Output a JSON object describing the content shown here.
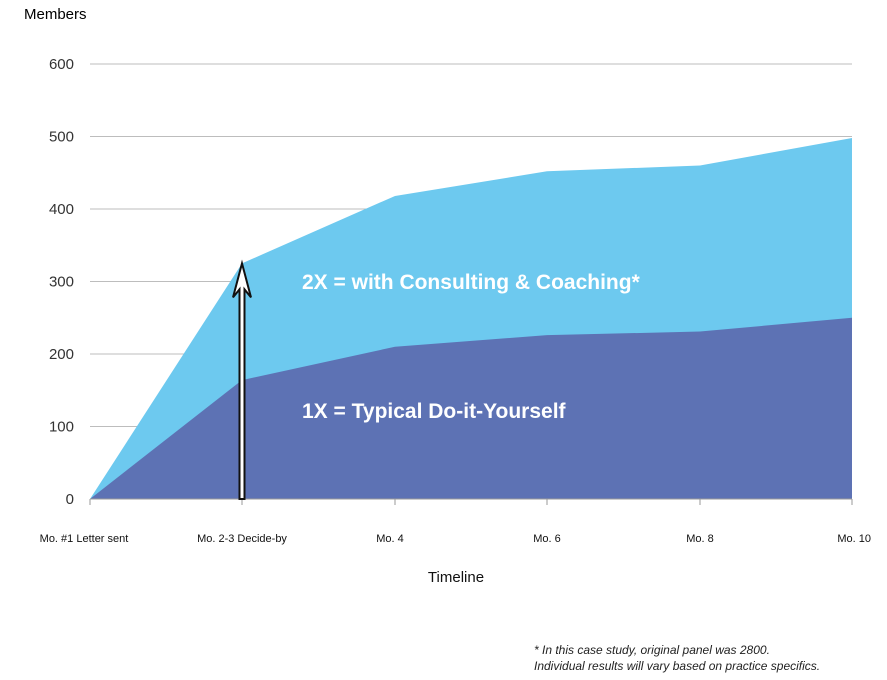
{
  "chart_data": {
    "type": "area",
    "ylabel": "Members",
    "xlabel": "Timeline",
    "categories": [
      "Mo. #1 Letter sent",
      "Mo. 2-3 Decide-by",
      "Mo. 4",
      "Mo. 6",
      "Mo. 8",
      "Mo. 10"
    ],
    "series": [
      {
        "name": "1X = Typical Do-it-Yourself",
        "values": [
          0,
          164,
          210,
          226,
          231,
          250
        ],
        "color": "#5d72b4"
      },
      {
        "name": "2X = with Consulting & Coaching*",
        "values": [
          0,
          325,
          418,
          452,
          460,
          498
        ],
        "color": "#6dc9ef"
      }
    ],
    "yticks": [
      0,
      100,
      200,
      300,
      400,
      500,
      600
    ],
    "ylim": [
      0,
      600
    ],
    "grid": true,
    "legend": "none",
    "annotation_arrow": {
      "category": "Mo. 2-3 Decide-by",
      "from": 0,
      "to": 325
    }
  },
  "footnote": {
    "line1": "* In this case study, original panel was 2800.",
    "line2": "Individual results will vary based on practice specifics."
  }
}
